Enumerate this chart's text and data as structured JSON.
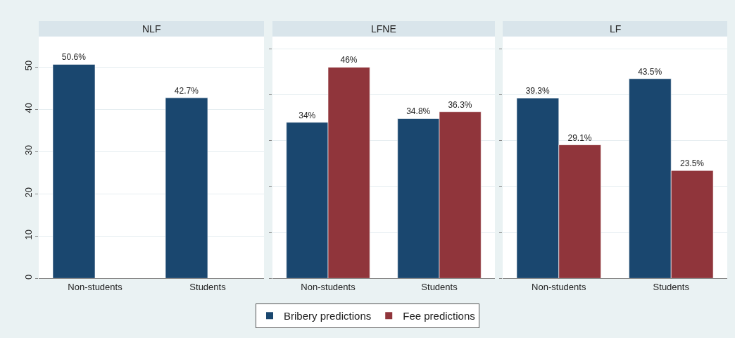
{
  "chart_data": [
    {
      "type": "bar",
      "title": "NLF",
      "categories": [
        "Non-students",
        "Students"
      ],
      "series": [
        {
          "color": "#1a476f",
          "values": [
            50.6,
            42.7
          ],
          "value_labels": [
            "50.6%",
            "42.7%"
          ]
        },
        {
          "color": "#90353b",
          "values": [
            null,
            null
          ],
          "value_labels": [
            null,
            null
          ]
        }
      ],
      "ylim": [
        0,
        57.2
      ],
      "yticks": [
        0,
        10,
        20,
        30,
        40,
        50
      ],
      "grid": "y"
    },
    {
      "type": "bar",
      "title": "LFNE",
      "categories": [
        "Non-students",
        "Students"
      ],
      "series": [
        {
          "name": "Bribery predictions",
          "color": "#1a476f",
          "values": [
            34,
            34.8
          ],
          "value_labels": [
            "34%",
            "34.8%"
          ]
        },
        {
          "name": "Fee predictions",
          "color": "#90353b",
          "values": [
            46,
            36.3
          ],
          "value_labels": [
            "46%",
            "36.3%"
          ]
        }
      ],
      "ylim": [
        0,
        52.7
      ],
      "yticks": [
        {
          "value": 0,
          "label": null
        },
        {
          "value": 10,
          "label": null
        },
        {
          "value": 20,
          "label": null
        },
        {
          "value": 30,
          "label": null
        },
        {
          "value": 40,
          "label": null
        },
        {
          "value": 50,
          "label": null
        }
      ],
      "grid": "y",
      "tick_labels": "x",
      "legend": "bottom"
    },
    {
      "type": "bar",
      "title": "LF",
      "categories": [
        "Non-students",
        "Students"
      ],
      "series": [
        {
          "color": "#1a476f",
          "values": [
            39.3,
            43.5
          ],
          "value_labels": [
            "39.3%",
            "43.5%"
          ]
        },
        {
          "color": "#90353b",
          "values": [
            29.1,
            23.5
          ],
          "value_labels": [
            "29.1%",
            "23.5%"
          ]
        }
      ],
      "ylim": [
        0,
        52.7
      ],
      "yticks": [
        {
          "value": 0,
          "label": null
        },
        {
          "value": 10,
          "label": null
        },
        {
          "value": 20,
          "label": null
        },
        {
          "value": 30,
          "label": null
        },
        {
          "value": 40,
          "label": null
        },
        {
          "value": 50,
          "label": null
        }
      ],
      "grid": "y",
      "tick_labels": "x"
    }
  ]
}
